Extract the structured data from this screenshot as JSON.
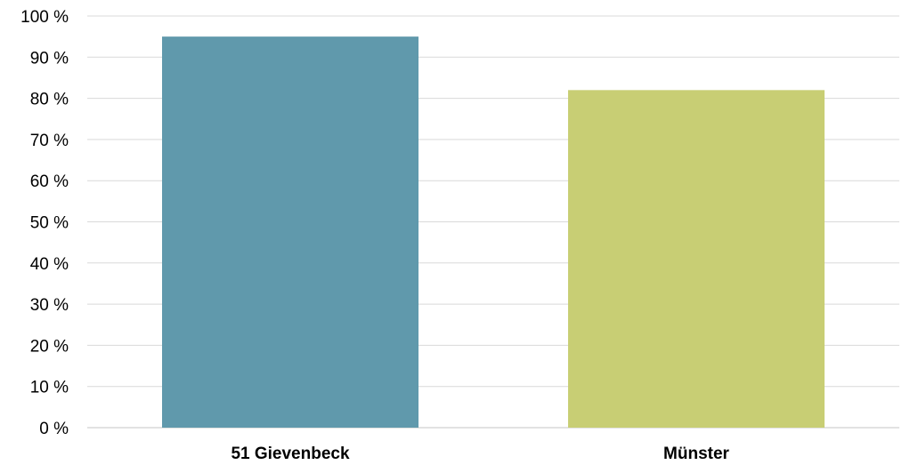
{
  "chart_data": {
    "type": "bar",
    "categories": [
      "51 Gievenbeck",
      "Münster"
    ],
    "values": [
      95,
      82
    ],
    "colors": [
      "#6099ac",
      "#c8ce74"
    ],
    "ylim": [
      0,
      100
    ],
    "ytick_step": 10,
    "ytick_suffix": " %",
    "grid": true,
    "grid_color": "#d9d9d9",
    "title": "",
    "xlabel": "",
    "ylabel": ""
  }
}
